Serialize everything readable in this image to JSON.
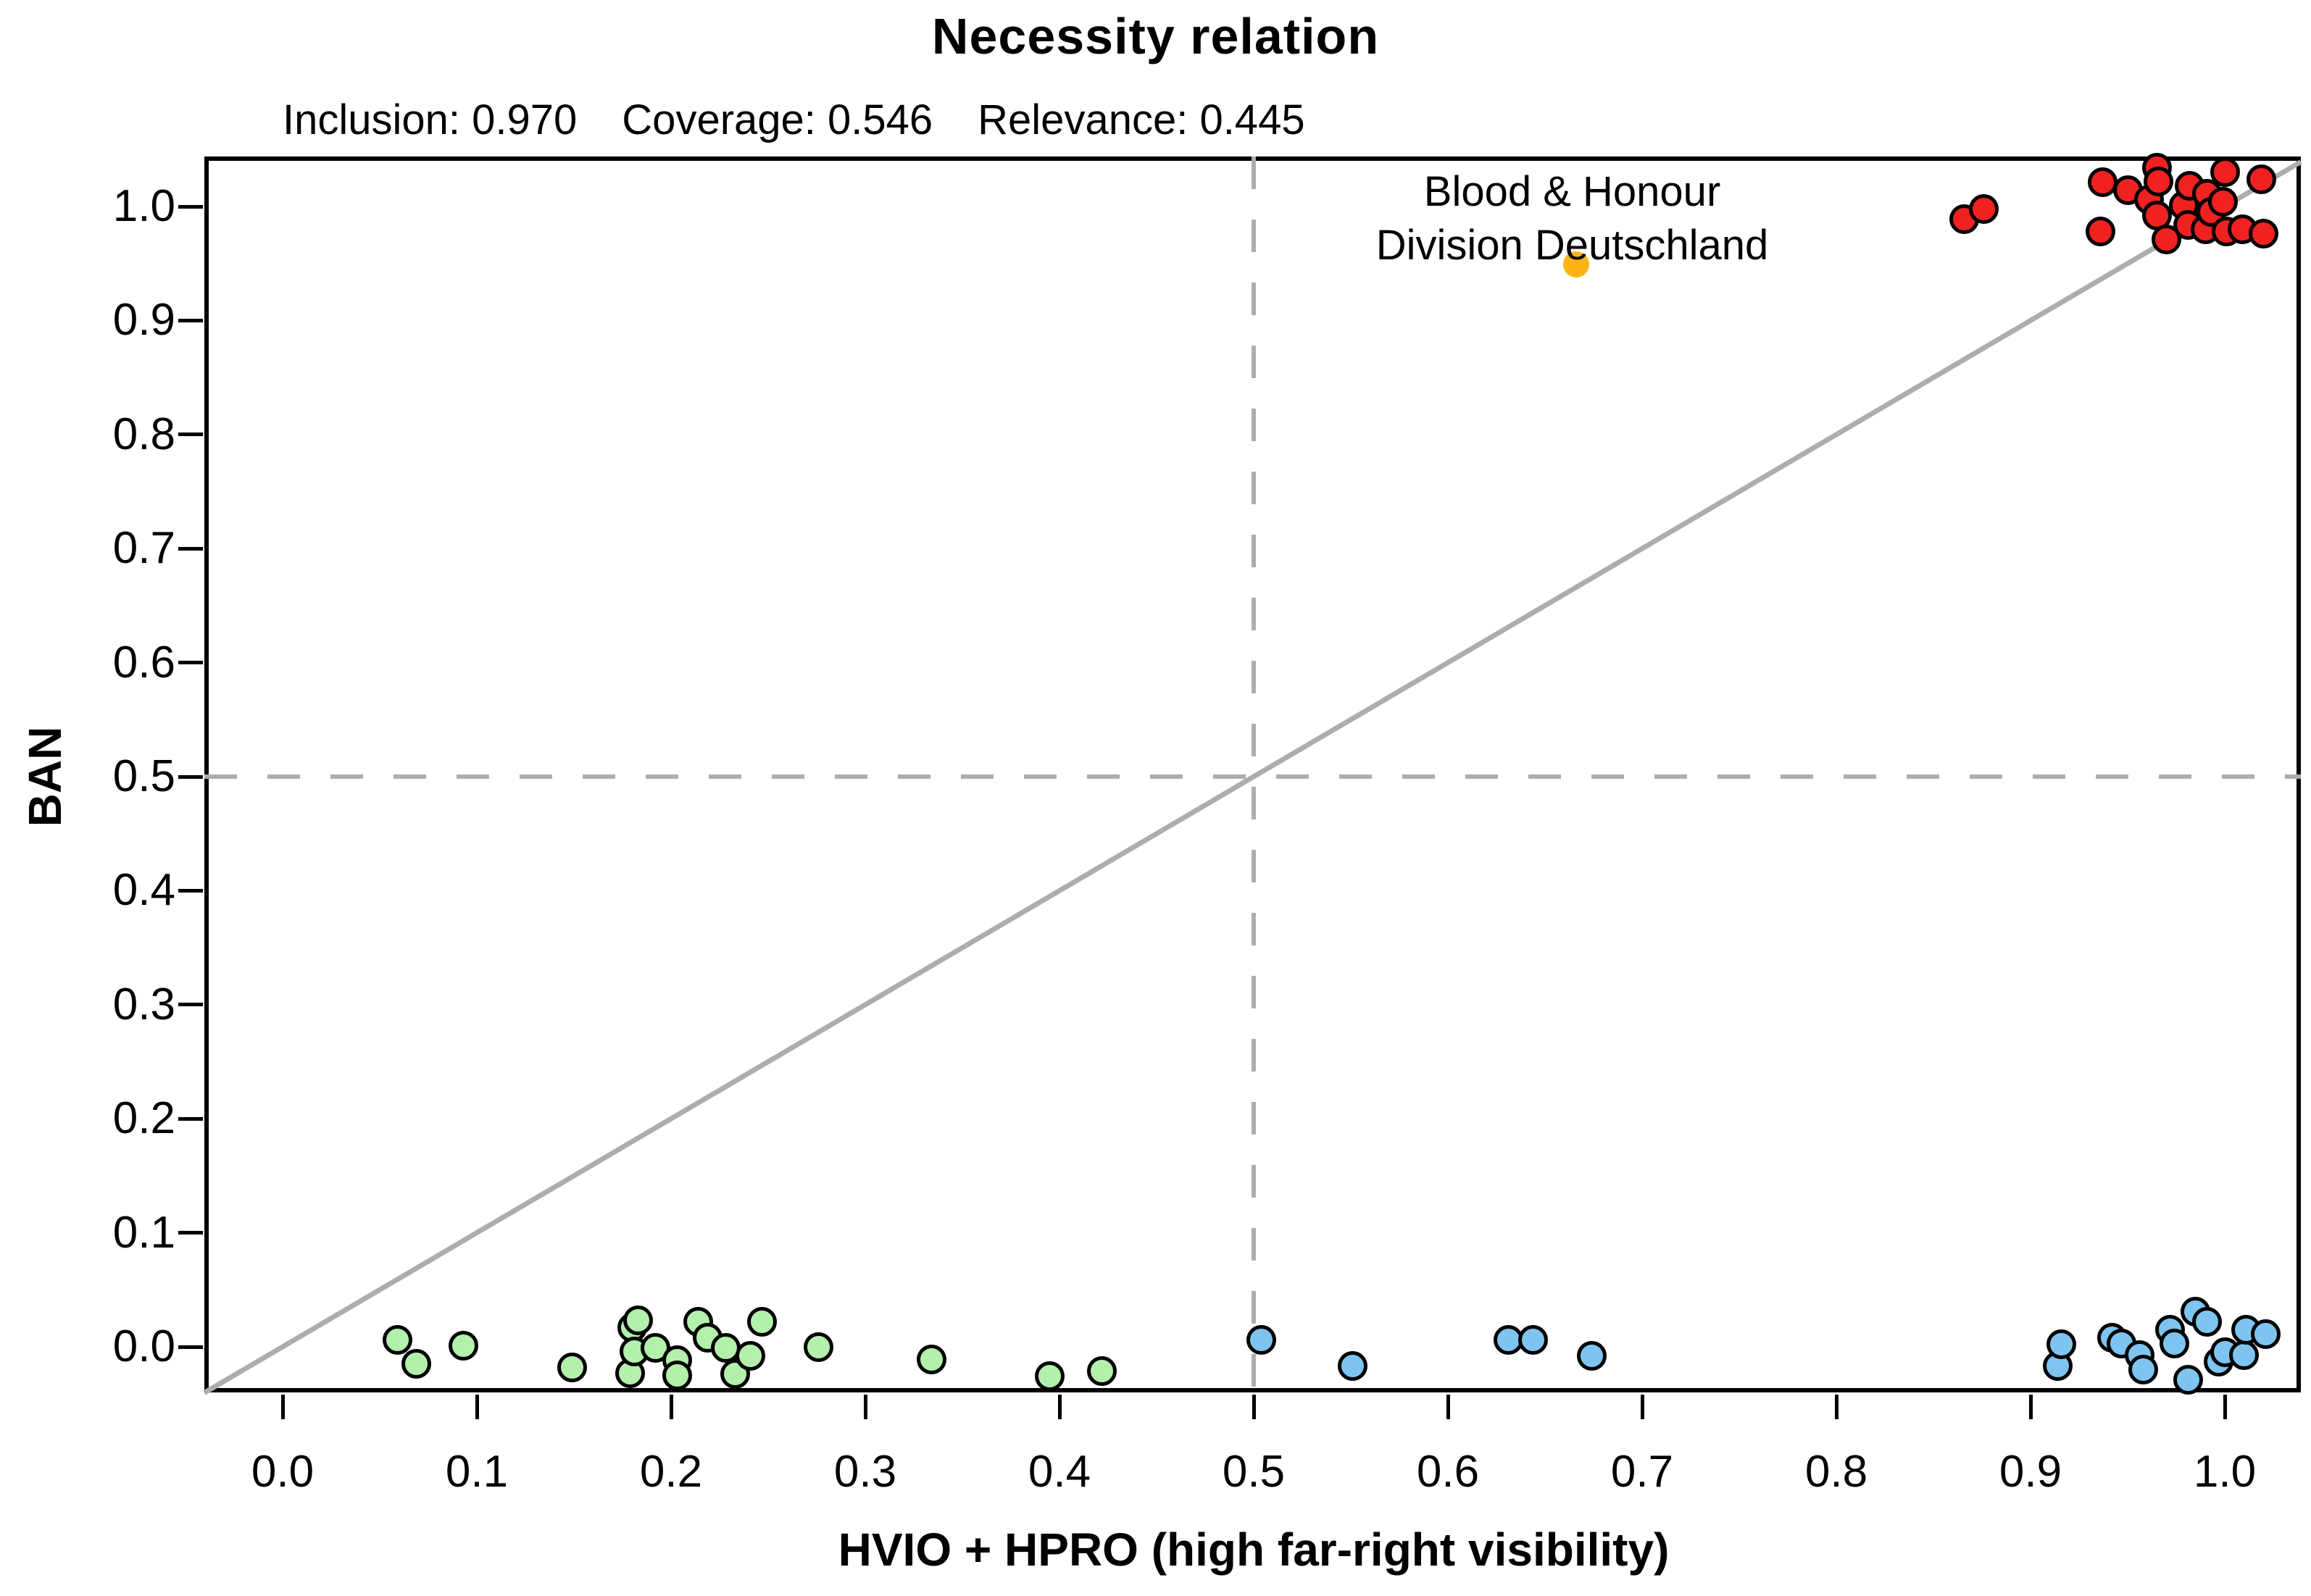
{
  "title": "Necessity relation",
  "stats": [
    "Inclusion: 0.970",
    "Coverage: 0.546",
    "Relevance: 0.445"
  ],
  "chart_data": {
    "type": "scatter",
    "title": "Necessity relation",
    "subtitle_stats": {
      "inclusion": 0.97,
      "coverage": 0.546,
      "relevance": 0.445
    },
    "xlabel": "HVIO + HPRO (high far-right visibility)",
    "ylabel": "BAN",
    "xlim": [
      -0.04,
      1.039
    ],
    "ylim": [
      -0.04,
      1.043
    ],
    "grid": false,
    "legend": "none",
    "x_tick_values": [
      0.0,
      0.1,
      0.2,
      0.3,
      0.4,
      0.5,
      0.6,
      0.7,
      0.8,
      0.9,
      1.0
    ],
    "x_tick_labels": [
      "0.0",
      "0.1",
      "0.2",
      "0.3",
      "0.4",
      "0.5",
      "0.6",
      "0.7",
      "0.8",
      "0.9",
      "1.0"
    ],
    "y_tick_values": [
      0.0,
      0.1,
      0.2,
      0.3,
      0.4,
      0.5,
      0.6,
      0.7,
      0.8,
      0.9,
      1.0
    ],
    "y_tick_labels": [
      "0.0",
      "0.1",
      "0.2",
      "0.3",
      "0.4",
      "0.5",
      "0.6",
      "0.7",
      "0.8",
      "0.9",
      "1.0"
    ],
    "reference_lines": {
      "diagonal": {
        "type": "identity",
        "color": "#ADADAD"
      },
      "vertical_dashed_x": 0.5,
      "horizontal_dashed_y": 0.5,
      "dashed_color": "#ADADAD"
    },
    "series": [
      {
        "name": "red",
        "color": "#F02121",
        "points": [
          [
            0.866,
            0.989
          ],
          [
            0.876,
            0.998
          ],
          [
            0.936,
            0.978
          ],
          [
            0.937,
            1.021
          ],
          [
            0.95,
            1.014
          ],
          [
            0.961,
            1.006
          ],
          [
            0.965,
            1.034
          ],
          [
            0.966,
            1.022
          ],
          [
            0.965,
            0.992
          ],
          [
            0.97,
            0.971
          ],
          [
            0.979,
            1.001
          ],
          [
            0.982,
            1.018
          ],
          [
            0.981,
            0.984
          ],
          [
            0.99,
            0.98
          ],
          [
            0.991,
            1.011
          ],
          [
            0.993,
            0.995
          ],
          [
            0.999,
            1.004
          ],
          [
            1.0,
            1.03
          ],
          [
            1.001,
            0.978
          ],
          [
            1.009,
            0.98
          ],
          [
            1.019,
            1.024
          ],
          [
            1.02,
            0.976
          ]
        ]
      },
      {
        "name": "green",
        "color": "#B2F0AC",
        "points": [
          [
            0.059,
            0.006
          ],
          [
            0.069,
            -0.015
          ],
          [
            0.093,
            0.001
          ],
          [
            0.149,
            -0.018
          ],
          [
            0.179,
            -0.023
          ],
          [
            0.18,
            0.017
          ],
          [
            0.181,
            -0.004
          ],
          [
            0.183,
            0.023
          ],
          [
            0.192,
            -0.001
          ],
          [
            0.203,
            -0.012
          ],
          [
            0.203,
            -0.025
          ],
          [
            0.214,
            0.022
          ],
          [
            0.219,
            0.008
          ],
          [
            0.228,
            -0.001
          ],
          [
            0.233,
            -0.024
          ],
          [
            0.241,
            -0.008
          ],
          [
            0.247,
            0.022
          ],
          [
            0.276,
            0.0
          ],
          [
            0.334,
            -0.011
          ],
          [
            0.395,
            -0.026
          ],
          [
            0.422,
            -0.021
          ]
        ]
      },
      {
        "name": "blue",
        "color": "#7EC4F0",
        "points": [
          [
            0.504,
            0.006
          ],
          [
            0.551,
            -0.017
          ],
          [
            0.631,
            0.006
          ],
          [
            0.644,
            0.006
          ],
          [
            0.674,
            -0.008
          ],
          [
            0.914,
            -0.017
          ],
          [
            0.916,
            0.002
          ],
          [
            0.942,
            0.008
          ],
          [
            0.947,
            0.003
          ],
          [
            0.956,
            -0.007
          ],
          [
            0.958,
            -0.02
          ],
          [
            0.972,
            0.015
          ],
          [
            0.974,
            0.003
          ],
          [
            0.981,
            -0.029
          ],
          [
            0.985,
            0.031
          ],
          [
            0.991,
            0.022
          ],
          [
            0.997,
            -0.013
          ],
          [
            1.0,
            -0.005
          ],
          [
            1.01,
            -0.007
          ],
          [
            1.011,
            0.015
          ],
          [
            1.021,
            0.011
          ]
        ]
      },
      {
        "name": "orange",
        "color": "#FDB515",
        "points": [
          [
            0.666,
            0.949
          ]
        ]
      }
    ],
    "annotation": {
      "lines": [
        "Blood & Honour",
        "Division Deutschland"
      ],
      "anchor_x": 0.664,
      "anchor_y": 1.036
    }
  }
}
